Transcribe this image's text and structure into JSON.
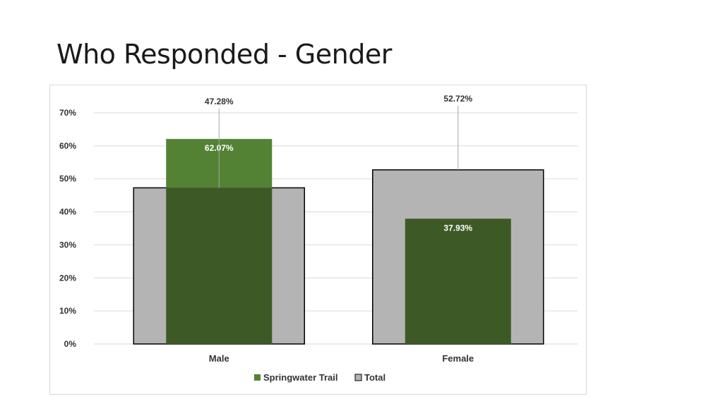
{
  "slide": {
    "title": "Who Responded - Gender"
  },
  "colors": {
    "springwater": "#3d5a26",
    "springwater_highlight": "#548235",
    "total": "#b4b4b4",
    "total_border": "#000000",
    "gridline": "#d9d9d9",
    "text": "#333333"
  },
  "chart_data": {
    "type": "bar",
    "title": "",
    "xlabel": "",
    "ylabel": "",
    "categories": [
      "Male",
      "Female"
    ],
    "series": [
      {
        "name": "Springwater Trail",
        "values": [
          62.07,
          37.93
        ],
        "labels": [
          "62.07%",
          "37.93%"
        ]
      },
      {
        "name": "Total",
        "values": [
          47.28,
          52.72
        ],
        "labels": [
          "47.28%",
          "52.72%"
        ]
      }
    ],
    "ylim": [
      0,
      70
    ],
    "yticks": [
      0,
      10,
      20,
      30,
      40,
      50,
      60,
      70
    ],
    "ytick_labels": [
      "0%",
      "10%",
      "20%",
      "30%",
      "40%",
      "50%",
      "60%",
      "70%"
    ],
    "grid": true,
    "legend_position": "bottom",
    "overlapped": true
  }
}
